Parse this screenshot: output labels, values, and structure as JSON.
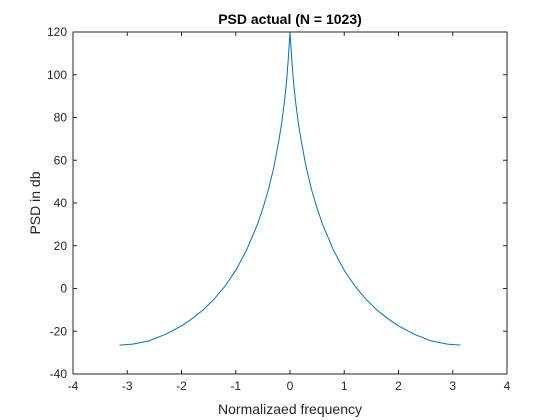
{
  "chart_data": {
    "type": "line",
    "title": "PSD actual (N = 1023)",
    "xlabel": "Normalizaed frequency",
    "ylabel": "PSD in db",
    "xlim": [
      -4,
      4
    ],
    "ylim": [
      -40,
      120
    ],
    "xticks": [
      -4,
      -3,
      -2,
      -1,
      0,
      1,
      2,
      3,
      4
    ],
    "yticks": [
      -40,
      -20,
      0,
      20,
      40,
      60,
      80,
      100,
      120
    ],
    "grid": false,
    "line_color": "#0072bd",
    "series": [
      {
        "x": [
          -3.1416,
          -2.9,
          -2.6,
          -2.3,
          -2.0,
          -1.8,
          -1.6,
          -1.4,
          -1.2,
          -1.0,
          -0.8,
          -0.6,
          -0.5,
          -0.4,
          -0.3,
          -0.2,
          -0.15,
          -0.1,
          -0.06,
          -0.03,
          0.0,
          0.03,
          0.06,
          0.1,
          0.15,
          0.2,
          0.3,
          0.4,
          0.5,
          0.6,
          0.8,
          1.0,
          1.2,
          1.4,
          1.6,
          1.8,
          2.0,
          2.3,
          2.6,
          2.9,
          3.1416
        ],
        "values": [
          -26.5,
          -26.0,
          -24.5,
          -21.5,
          -17.5,
          -14.0,
          -10.0,
          -5.0,
          1.0,
          8.5,
          18.0,
          30.0,
          37.5,
          46.0,
          56.5,
          70.0,
          78.0,
          88.0,
          98.0,
          108.0,
          120.0,
          108.0,
          98.0,
          88.0,
          78.0,
          70.0,
          56.5,
          46.0,
          37.5,
          30.0,
          18.0,
          8.5,
          1.0,
          -5.0,
          -10.0,
          -14.0,
          -17.5,
          -21.5,
          -24.5,
          -26.0,
          -26.5
        ]
      }
    ]
  }
}
